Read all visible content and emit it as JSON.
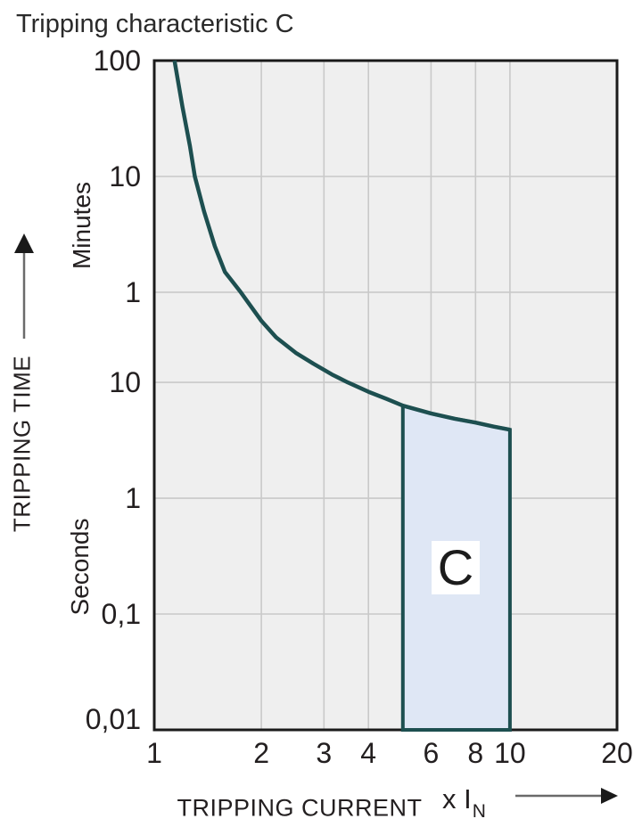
{
  "title": "Tripping characteristic C",
  "colors": {
    "background": "#ffffff",
    "plot_background": "#efefef",
    "gridline": "#c9c9c9",
    "frame": "#1a1a1a",
    "curve": "#1d4f50",
    "band_fill": "#dfe7f5",
    "band_border": "#1d4f50",
    "band_label_background": "#ffffff",
    "text": "#231f20",
    "arrow_line": "#6a6a6a",
    "arrow_head": "#1a1a1a"
  },
  "chart_data": {
    "type": "line",
    "title": "Tripping characteristic C",
    "grid": true,
    "x_axis": {
      "title": "TRIPPING CURRENT",
      "unit_prefix": "x I",
      "unit_sub": "N",
      "scale": "log",
      "range": [
        1,
        20
      ],
      "tick_labels": [
        "1",
        "2",
        "3",
        "4",
        "6",
        "8",
        "10",
        "20"
      ],
      "tick_values": [
        1,
        2,
        3,
        4,
        6,
        8,
        10,
        20
      ],
      "gridline_values": [
        2,
        3,
        4,
        6,
        8,
        10
      ]
    },
    "y_axis": {
      "title": "TRIPPING TIME",
      "scale": "log",
      "unit_sections": [
        {
          "label": "Minutes"
        },
        {
          "label": "Seconds"
        }
      ],
      "range_seconds": [
        0.01,
        6000
      ],
      "ticks": [
        {
          "label": "100",
          "unit": "Minutes",
          "seconds": 6000
        },
        {
          "label": "10",
          "unit": "Minutes",
          "seconds": 600
        },
        {
          "label": "1",
          "unit": "Minutes",
          "seconds": 60
        },
        {
          "label": "10",
          "unit": "Seconds",
          "seconds": 10
        },
        {
          "label": "1",
          "unit": "Seconds",
          "seconds": 1
        },
        {
          "label": "0,1",
          "unit": "Seconds",
          "seconds": 0.1
        },
        {
          "label": "0,01",
          "unit": "Seconds",
          "seconds": 0.01
        }
      ],
      "gridline_seconds": [
        600,
        60,
        10,
        1,
        0.1
      ]
    },
    "series": [
      {
        "name": "C-curve tripping time vs current multiple",
        "points_x_multiple_vs_seconds": [
          [
            1.14,
            6000
          ],
          [
            1.2,
            2400
          ],
          [
            1.26,
            1100
          ],
          [
            1.3,
            600
          ],
          [
            1.38,
            300
          ],
          [
            1.48,
            150
          ],
          [
            1.58,
            90
          ],
          [
            1.75,
            60
          ],
          [
            2.0,
            34
          ],
          [
            2.2,
            24.5
          ],
          [
            2.5,
            18
          ],
          [
            2.8,
            14.5
          ],
          [
            3.16,
            11.7
          ],
          [
            3.5,
            10
          ],
          [
            4.0,
            8.3
          ],
          [
            4.5,
            7.2
          ],
          [
            5.0,
            6.3
          ],
          [
            6.0,
            5.4
          ],
          [
            7.0,
            4.85
          ],
          [
            8.0,
            4.5
          ],
          [
            9.0,
            4.15
          ],
          [
            10.0,
            3.9
          ]
        ]
      }
    ],
    "band": {
      "label": "C",
      "x_from": 5,
      "x_to": 10,
      "bottom_seconds": 0.01
    }
  }
}
